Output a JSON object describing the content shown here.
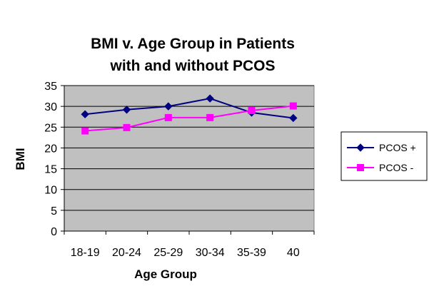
{
  "chart_data": {
    "type": "line",
    "title": [
      "BMI v. Age Group in Patients",
      "with and without PCOS"
    ],
    "xlabel": "Age Group",
    "ylabel": "BMI",
    "categories": [
      "18-19",
      "20-24",
      "25-29",
      "30-34",
      "35-39",
      "40"
    ],
    "ylim": [
      0,
      35
    ],
    "yticks": [
      0,
      5,
      10,
      15,
      20,
      25,
      30,
      35
    ],
    "grid": true,
    "legend": "right",
    "plot_background": "#c0c0c0",
    "series": [
      {
        "name": "PCOS +",
        "color": "#000080",
        "marker": "diamond",
        "values": [
          28.1,
          29.2,
          30.0,
          31.9,
          28.5,
          27.2
        ]
      },
      {
        "name": "PCOS -",
        "color": "#ff00ff",
        "marker": "square",
        "values": [
          24.1,
          24.9,
          27.3,
          27.3,
          29.0,
          30.1
        ]
      }
    ]
  }
}
